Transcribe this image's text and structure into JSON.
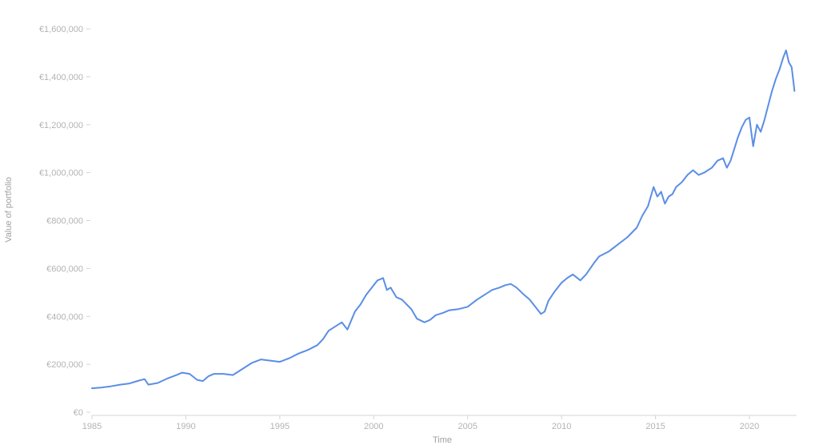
{
  "chart_data": {
    "type": "line",
    "title": "",
    "xlabel": "Time",
    "ylabel": "Value of portfolio",
    "xlim": [
      1985,
      2022.5
    ],
    "ylim": [
      0,
      1600000
    ],
    "grid": false,
    "legend": "none",
    "x_ticks": [
      1985,
      1990,
      1995,
      2000,
      2005,
      2010,
      2015,
      2020
    ],
    "x_tick_labels": [
      "1985",
      "1990",
      "1995",
      "2000",
      "2005",
      "2010",
      "2015",
      "2020"
    ],
    "y_ticks": [
      0,
      200000,
      400000,
      600000,
      800000,
      1000000,
      1200000,
      1400000,
      1600000
    ],
    "y_tick_labels": [
      "€0",
      "€200,000",
      "€400,000",
      "€600,000",
      "€800,000",
      "€1,000,000",
      "€1,200,000",
      "€1,400,000",
      "€1,600,000"
    ],
    "colors": {
      "line": "#5b8ee6",
      "tick_text": "#b3b3b3",
      "axis_title": "#a0a0a0"
    },
    "series": [
      {
        "x": [
          1985.0,
          1985.5,
          1986.0,
          1986.5,
          1987.0,
          1987.5,
          1987.8,
          1988.0,
          1988.5,
          1989.0,
          1989.5,
          1989.8,
          1990.2,
          1990.6,
          1990.9,
          1991.2,
          1991.5,
          1992.0,
          1992.5,
          1993.0,
          1993.5,
          1994.0,
          1994.5,
          1995.0,
          1995.5,
          1996.0,
          1996.5,
          1997.0,
          1997.3,
          1997.6,
          1998.0,
          1998.3,
          1998.6,
          1999.0,
          1999.3,
          1999.6,
          2000.0,
          2000.2,
          2000.5,
          2000.7,
          2000.9,
          2001.2,
          2001.5,
          2002.0,
          2002.3,
          2002.7,
          2003.0,
          2003.3,
          2003.7,
          2004.0,
          2004.5,
          2005.0,
          2005.5,
          2006.0,
          2006.3,
          2006.7,
          2007.0,
          2007.3,
          2007.6,
          2008.0,
          2008.3,
          2008.6,
          2008.9,
          2009.1,
          2009.3,
          2009.6,
          2010.0,
          2010.3,
          2010.6,
          2011.0,
          2011.3,
          2011.7,
          2012.0,
          2012.5,
          2013.0,
          2013.5,
          2014.0,
          2014.3,
          2014.6,
          2014.9,
          2015.1,
          2015.3,
          2015.5,
          2015.7,
          2015.9,
          2016.1,
          2016.4,
          2016.7,
          2017.0,
          2017.3,
          2017.6,
          2018.0,
          2018.3,
          2018.6,
          2018.8,
          2019.0,
          2019.2,
          2019.4,
          2019.6,
          2019.8,
          2020.0,
          2020.1,
          2020.2,
          2020.4,
          2020.6,
          2020.8,
          2021.0,
          2021.2,
          2021.4,
          2021.6,
          2021.8,
          2021.95,
          2022.1,
          2022.25,
          2022.4
        ],
        "y": [
          100000,
          103000,
          108000,
          115000,
          120000,
          132000,
          138000,
          115000,
          122000,
          140000,
          155000,
          165000,
          160000,
          135000,
          130000,
          150000,
          160000,
          160000,
          155000,
          180000,
          205000,
          220000,
          215000,
          210000,
          225000,
          245000,
          260000,
          280000,
          305000,
          340000,
          360000,
          375000,
          345000,
          420000,
          450000,
          490000,
          530000,
          550000,
          560000,
          510000,
          520000,
          480000,
          470000,
          430000,
          390000,
          375000,
          385000,
          405000,
          415000,
          425000,
          430000,
          440000,
          470000,
          495000,
          510000,
          520000,
          530000,
          535000,
          520000,
          490000,
          470000,
          440000,
          410000,
          420000,
          465000,
          500000,
          540000,
          560000,
          575000,
          550000,
          575000,
          620000,
          650000,
          670000,
          700000,
          730000,
          770000,
          820000,
          860000,
          940000,
          900000,
          920000,
          870000,
          900000,
          910000,
          940000,
          960000,
          990000,
          1010000,
          990000,
          1000000,
          1020000,
          1050000,
          1060000,
          1020000,
          1050000,
          1100000,
          1150000,
          1190000,
          1220000,
          1230000,
          1170000,
          1110000,
          1200000,
          1170000,
          1220000,
          1280000,
          1340000,
          1390000,
          1430000,
          1480000,
          1510000,
          1460000,
          1440000,
          1340000
        ]
      }
    ]
  }
}
